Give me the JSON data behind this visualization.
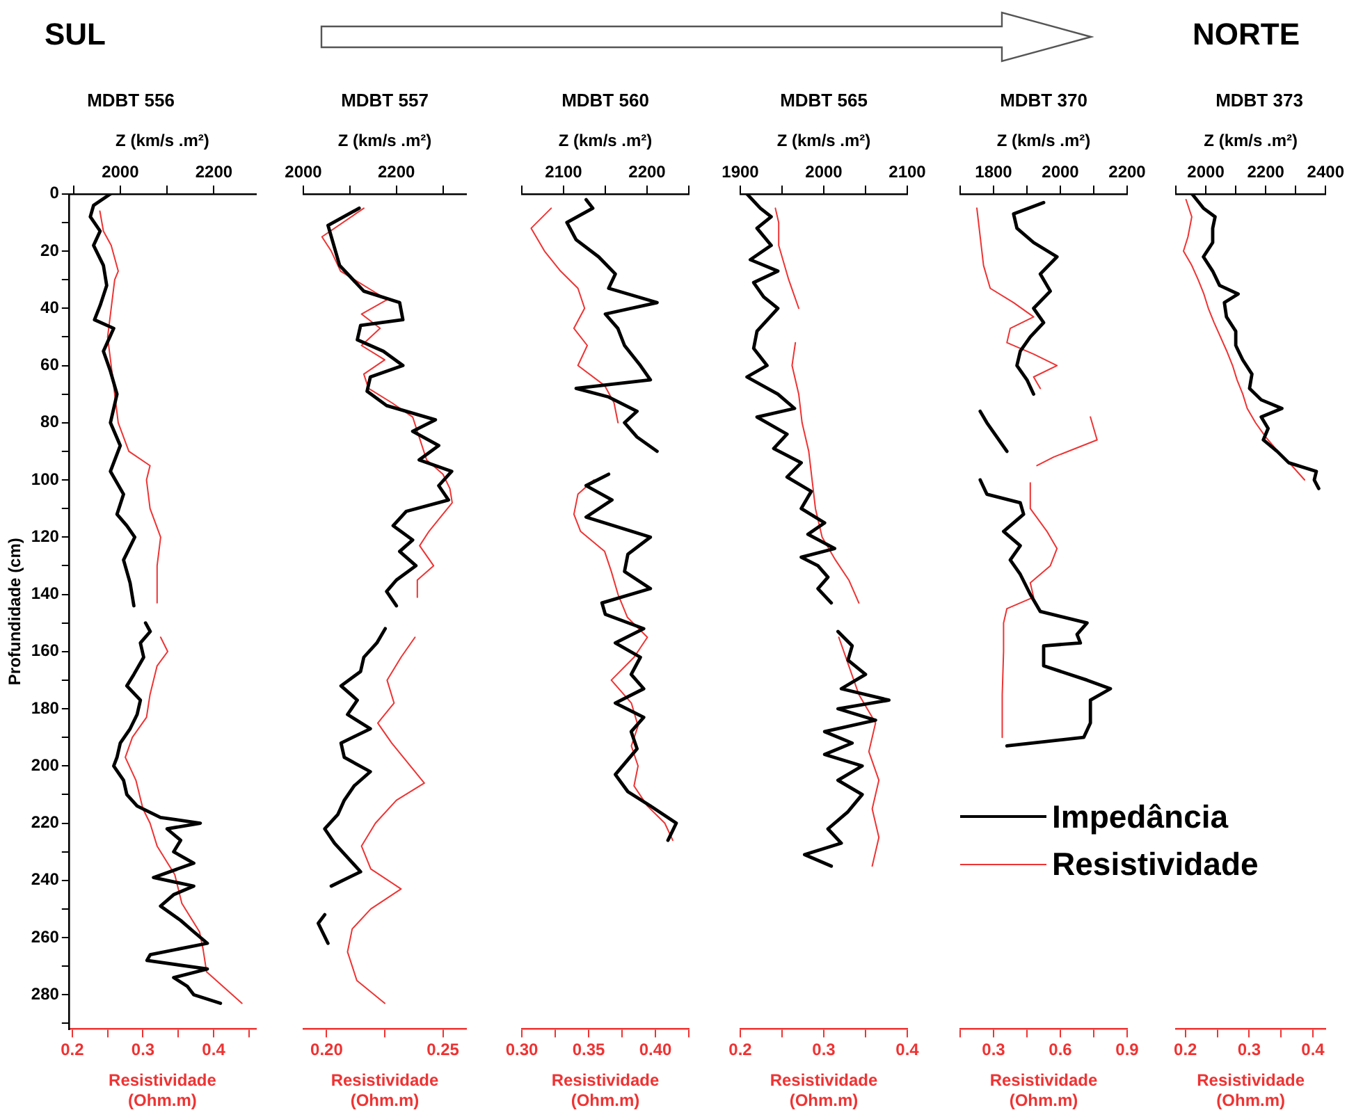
{
  "chart_data": [
    {
      "type": "line",
      "title": "MDBT 556",
      "xlabel": "Resistividade (Ohm.m)",
      "x2label": "Z (km/s .m²)",
      "ylabel": "Profundidade (cm)",
      "annotations": [
        "SUL"
      ],
      "xlim": [
        0.195,
        0.46
      ],
      "xticks": [
        0.2,
        {
          "value": 0.25,
          "label": null
        },
        0.3,
        {
          "value": 0.35,
          "label": null
        },
        0.4,
        {
          "value": 0.45,
          "label": null
        }
      ],
      "x2lim": [
        1890,
        2290
      ],
      "x2ticks": [
        {
          "value": 1900,
          "label": null
        },
        2000,
        {
          "value": 2100,
          "label": null
        },
        2200
      ],
      "ylim": [
        292,
        0
      ],
      "yticks": [
        0,
        {
          "value": 10,
          "label": null
        },
        20,
        {
          "value": 30,
          "label": null
        },
        40,
        {
          "value": 50,
          "label": null
        },
        60,
        {
          "value": 70,
          "label": null
        },
        80,
        {
          "value": 90,
          "label": null
        },
        100,
        {
          "value": 110,
          "label": null
        },
        120,
        {
          "value": 130,
          "label": null
        },
        140,
        {
          "value": 150,
          "label": null
        },
        160,
        {
          "value": 170,
          "label": null
        },
        180,
        {
          "value": 190,
          "label": null
        },
        200,
        {
          "value": 210,
          "label": null
        },
        220,
        {
          "value": 230,
          "label": null
        },
        240,
        {
          "value": 250,
          "label": null
        },
        260,
        {
          "value": 270,
          "label": null
        },
        280,
        {
          "value": 290,
          "label": null
        }
      ],
      "series": [
        {
          "color": "#000000",
          "axis": "x2",
          "x": [
            1979,
            1943,
            1936,
            1957,
            1943,
            1964,
            1971,
            1957,
            1945,
            1986,
            1964,
            1979,
            1993,
            1979,
            2000,
            1979,
            2007,
            1993,
            2014,
            2031,
            2007,
            2021,
            2029,
            null,
            2054,
            2064,
            2043,
            2050,
            2029,
            2014,
            2043,
            2036,
            2021,
            2000,
            1993,
            1986,
            2007,
            2014,
            2036,
            2086,
            2171,
            2100,
            2129,
            2114,
            2157,
            2071,
            2157,
            2114,
            2086,
            2129,
            2157,
            2186,
            2064,
            2057,
            2186,
            2114,
            2143,
            2157,
            2214
          ],
          "values": [
            0,
            4,
            8,
            13,
            18,
            25,
            32,
            39,
            44,
            47,
            55,
            62,
            70,
            80,
            88,
            97,
            105,
            112,
            116,
            120,
            128,
            136,
            144,
            null,
            150,
            153,
            157,
            162,
            168,
            172,
            177,
            182,
            187,
            192,
            197,
            200,
            205,
            210,
            214,
            218,
            220,
            222,
            226,
            230,
            234,
            239,
            242,
            245,
            249,
            254,
            258,
            262,
            266,
            268,
            271,
            274,
            277,
            280,
            283
          ]
        },
        {
          "color": "#ee3333",
          "x": [
            0.239,
            0.244,
            0.255,
            0.265,
            0.26,
            0.255,
            0.25,
            0.255,
            0.26,
            0.265,
            0.28,
            0.31,
            0.305,
            0.31,
            0.325,
            0.32,
            0.32,
            null,
            0.325,
            0.335,
            0.32,
            0.31,
            0.305,
            0.285,
            0.275,
            0.29,
            0.3,
            0.31,
            0.32,
            0.345,
            0.355,
            0.38,
            0.385,
            0.39,
            0.44
          ],
          "values": [
            6,
            13,
            18,
            27,
            30,
            40,
            50,
            60,
            70,
            80,
            90,
            95,
            100,
            110,
            120,
            130,
            143,
            null,
            155,
            160,
            165,
            175,
            183,
            190,
            197,
            205,
            215,
            220,
            228,
            238,
            248,
            258,
            264,
            272,
            283
          ]
        }
      ]
    },
    {
      "type": "line",
      "title": "MDBT 557",
      "xlabel": "Resistividade (Ohm.m)",
      "x2label": "Z (km/s .m²)",
      "tick_labels": "x",
      "xlim": [
        0.19,
        0.26
      ],
      "xticks": [
        {
          "value": 0.2,
          "label": "0.20"
        },
        {
          "value": 0.225,
          "label": null
        },
        {
          "value": 0.25,
          "label": "0.25"
        }
      ],
      "x2lim": [
        2000,
        2350
      ],
      "x2ticks": [
        2000,
        {
          "value": 2100,
          "label": null
        },
        2200,
        {
          "value": 2300,
          "label": null
        }
      ],
      "ylim": [
        292,
        0
      ],
      "series": [
        {
          "color": "#000000",
          "axis": "x2",
          "x": [
            2120,
            2053,
            2078,
            2130,
            2207,
            2214,
            2123,
            2116,
            2172,
            2214,
            2144,
            2137,
            2179,
            2284,
            2235,
            2291,
            2249,
            2319,
            2291,
            2312,
            2221,
            2193,
            2235,
            2207,
            2242,
            2200,
            2179,
            2200,
            null,
            2176,
            2158,
            2130,
            2123,
            2081,
            2116,
            2095,
            2144,
            2081,
            2088,
            2144,
            2109,
            2088,
            2074,
            2046,
            2067,
            2095,
            2123,
            2060,
            null,
            2046,
            2032,
            2053
          ],
          "values": [
            5,
            11,
            25,
            34,
            38,
            44,
            46,
            51,
            55,
            60,
            64,
            69,
            74,
            79,
            83,
            88,
            93,
            97,
            102,
            107,
            111,
            116,
            121,
            125,
            130,
            135,
            139,
            144,
            null,
            152,
            157,
            162,
            167,
            172,
            177,
            182,
            187,
            192,
            197,
            202,
            207,
            212,
            217,
            222,
            227,
            232,
            237,
            242,
            null,
            252,
            255,
            262
          ]
        },
        {
          "color": "#ee3333",
          "x": [
            0.216,
            0.198,
            0.202,
            0.206,
            0.218,
            0.226,
            0.215,
            0.223,
            0.215,
            0.225,
            0.216,
            0.218,
            0.228,
            0.237,
            0.239,
            0.243,
            0.25,
            0.253,
            0.254,
            0.249,
            0.244,
            0.24,
            0.246,
            0.239,
            0.239,
            null,
            0.238,
            0.232,
            0.226,
            0.229,
            0.222,
            0.228,
            0.242,
            0.23,
            0.221,
            0.215,
            0.219,
            0.232,
            0.219,
            0.211,
            0.209,
            0.213,
            0.225
          ],
          "values": [
            5,
            15,
            20,
            27,
            33,
            37,
            42,
            47,
            53,
            58,
            63,
            68,
            73,
            78,
            83,
            93,
            98,
            103,
            108,
            113,
            118,
            123,
            130,
            135,
            141,
            null,
            155,
            162,
            170,
            178,
            185,
            192,
            206,
            212,
            220,
            228,
            236,
            243,
            250,
            257,
            265,
            275,
            283
          ]
        }
      ]
    },
    {
      "type": "line",
      "title": "MDBT 560",
      "xlabel": "Resistividade (Ohm.m)",
      "x2label": "Z (km/s .m²)",
      "tick_labels": "x",
      "xlim": [
        0.3,
        0.425
      ],
      "xticks": [
        {
          "value": 0.3,
          "label": "0.30"
        },
        {
          "value": 0.325,
          "label": null
        },
        {
          "value": 0.35,
          "label": "0.35"
        },
        {
          "value": 0.375,
          "label": null
        },
        {
          "value": 0.4,
          "label": "0.40"
        },
        {
          "value": 0.425,
          "label": null
        }
      ],
      "x2lim": [
        2050,
        2250
      ],
      "x2ticks": [
        {
          "value": 2050,
          "label": null
        },
        2100,
        {
          "value": 2150,
          "label": null
        },
        2200,
        {
          "value": 2250,
          "label": null
        }
      ],
      "ylim": [
        292,
        0
      ],
      "series": [
        {
          "color": "#000000",
          "axis": "x2",
          "x": [
            2127,
            2135,
            2104,
            2115,
            2142,
            2162,
            2154,
            2212,
            2150,
            2165,
            2173,
            2192,
            2204,
            2115,
            2154,
            2188,
            2173,
            2188,
            2212,
            null,
            2154,
            2127,
            2158,
            2127,
            2204,
            2177,
            2173,
            2204,
            2146,
            2150,
            2196,
            2162,
            2192,
            2181,
            2196,
            2162,
            2196,
            2181,
            2188,
            2162,
            2177,
            2204,
            2235,
            2225
          ],
          "values": [
            2,
            5,
            10,
            16,
            22,
            28,
            33,
            38,
            42,
            47,
            53,
            60,
            65,
            68,
            71,
            76,
            80,
            85,
            90,
            null,
            98,
            102,
            107,
            113,
            120,
            126,
            132,
            138,
            143,
            147,
            152,
            157,
            162,
            168,
            173,
            178,
            183,
            188,
            194,
            203,
            209,
            214,
            220,
            226
          ]
        },
        {
          "color": "#ee3333",
          "x": [
            0.322,
            0.307,
            0.317,
            0.329,
            0.342,
            0.347,
            0.339,
            0.349,
            0.342,
            0.362,
            0.369,
            0.372,
            null,
            0.354,
            0.342,
            0.339,
            0.344,
            0.362,
            0.367,
            0.372,
            0.379,
            0.394,
            0.384,
            0.367,
            0.382,
            0.387,
            0.382,
            0.387,
            0.384,
            0.394,
            0.407,
            0.413
          ],
          "values": [
            5,
            12,
            20,
            27,
            33,
            40,
            47,
            53,
            60,
            67,
            73,
            80,
            null,
            100,
            105,
            112,
            118,
            125,
            132,
            140,
            148,
            155,
            162,
            170,
            178,
            186,
            193,
            200,
            207,
            214,
            220,
            226
          ]
        }
      ]
    },
    {
      "type": "line",
      "title": "MDBT 565",
      "xlabel": "Resistividade (Ohm.m)",
      "x2label": "Z (km/s .m²)",
      "tick_labels": "x",
      "xlim": [
        0.2,
        0.4
      ],
      "xticks": [
        0.2,
        {
          "value": 0.25,
          "label": null
        },
        0.3,
        {
          "value": 0.35,
          "label": null
        },
        0.4
      ],
      "x2lim": [
        1900,
        2100
      ],
      "x2ticks": [
        1900,
        {
          "value": 1950,
          "label": null
        },
        2000,
        {
          "value": 2050,
          "label": null
        },
        2100
      ],
      "ylim": [
        292,
        0
      ],
      "series": [
        {
          "color": "#000000",
          "axis": "x2",
          "x": [
            1908,
            1924,
            1937,
            1920,
            1937,
            1912,
            1945,
            1916,
            1928,
            1945,
            1920,
            1916,
            1932,
            1908,
            1945,
            1965,
            1920,
            1956,
            1940,
            1973,
            1956,
            1985,
            1973,
            2001,
            1981,
            2013,
            1973,
            1993,
            2005,
            1993,
            2009,
            null,
            2017,
            2034,
            2029,
            2050,
            2021,
            2078,
            2017,
            2062,
            2001,
            2034,
            2001,
            2046,
            2017,
            2046,
            2029,
            2005,
            2021,
            1977,
            2009
          ],
          "values": [
            0,
            5,
            8,
            12,
            18,
            23,
            27,
            31,
            36,
            40,
            48,
            54,
            60,
            64,
            70,
            75,
            78,
            84,
            89,
            94,
            99,
            104,
            110,
            115,
            119,
            124,
            127,
            130,
            134,
            138,
            143,
            null,
            153,
            158,
            163,
            168,
            173,
            177,
            180,
            184,
            188,
            192,
            196,
            200,
            205,
            210,
            216,
            222,
            227,
            231,
            235
          ]
        },
        {
          "color": "#ee3333",
          "x": [
            0.242,
            0.246,
            0.246,
            0.258,
            0.27,
            null,
            0.266,
            0.262,
            0.27,
            0.274,
            0.282,
            0.286,
            0.29,
            0.298,
            0.314,
            0.33,
            0.342,
            null,
            0.318,
            0.33,
            0.342,
            0.362,
            0.354,
            0.366,
            0.358,
            0.366,
            0.358
          ],
          "values": [
            5,
            10,
            18,
            30,
            40,
            null,
            52,
            60,
            70,
            80,
            90,
            100,
            110,
            120,
            128,
            135,
            143,
            null,
            155,
            165,
            175,
            185,
            195,
            205,
            215,
            225,
            235
          ]
        }
      ]
    },
    {
      "type": "line",
      "title": "MDBT 370",
      "xlabel": "Resistividade (Ohm.m)",
      "x2label": "Z (km/s .m²)",
      "tick_labels": "x",
      "legend": "bottom right",
      "xlim": [
        0.15,
        0.9
      ],
      "xticks": [
        {
          "value": 0.15,
          "label": null
        },
        0.3,
        {
          "value": 0.45,
          "label": null
        },
        0.6,
        {
          "value": 0.75,
          "label": null
        },
        0.9
      ],
      "x2lim": [
        1700,
        2200
      ],
      "x2ticks": [
        {
          "value": 1700,
          "label": null
        },
        1800,
        {
          "value": 1900,
          "label": null
        },
        2000,
        {
          "value": 2100,
          "label": null
        },
        2200
      ],
      "ylim": [
        292,
        0
      ],
      "series": [
        {
          "name": "Impedância",
          "color": "#000000",
          "axis": "x2",
          "x": [
            1950,
            1860,
            1870,
            1920,
            1990,
            1940,
            1970,
            1920,
            1950,
            1910,
            1880,
            1870,
            1900,
            1920,
            null,
            1760,
            1780,
            1810,
            1840,
            null,
            1760,
            1780,
            1880,
            1890,
            1830,
            1880,
            1850,
            1880,
            1910,
            1940,
            2080,
            2050,
            2060,
            1950,
            1950,
            2080,
            2150,
            2090,
            2090,
            2070,
            1840
          ],
          "values": [
            3,
            7,
            12,
            17,
            22,
            28,
            34,
            40,
            45,
            50,
            55,
            60,
            65,
            70,
            null,
            76,
            80,
            85,
            90,
            null,
            100,
            105,
            108,
            112,
            118,
            123,
            128,
            133,
            140,
            146,
            150,
            154,
            157,
            158,
            165,
            170,
            173,
            177,
            185,
            190,
            193
          ]
        },
        {
          "name": "Resistividade",
          "color": "#ee3333",
          "x": [
            0.225,
            0.24,
            0.255,
            0.285,
            0.39,
            0.48,
            0.375,
            0.36,
            0.48,
            0.585,
            0.48,
            0.51,
            null,
            0.735,
            0.765,
            0.57,
            0.495,
            null,
            0.465,
            0.465,
            0.54,
            0.585,
            0.555,
            0.465,
            0.48,
            0.36,
            0.345,
            0.345,
            0.339,
            0.339
          ],
          "values": [
            5,
            15,
            25,
            33,
            38,
            43,
            47,
            52,
            56,
            60,
            64,
            68,
            null,
            78,
            86,
            92,
            95,
            null,
            101,
            110,
            118,
            124,
            130,
            136,
            141,
            145,
            150,
            160,
            175,
            190
          ]
        }
      ]
    },
    {
      "type": "line",
      "title": "MDBT 373",
      "xlabel": "Resistividade (Ohm.m)",
      "x2label": "Z (km/s .m²)",
      "tick_labels": "x",
      "annotations": [
        "NORTE"
      ],
      "xlim": [
        0.185,
        0.42
      ],
      "xticks": [
        0.2,
        {
          "value": 0.25,
          "label": null
        },
        0.3,
        {
          "value": 0.35,
          "label": null
        },
        0.4
      ],
      "x2lim": [
        1900,
        2400
      ],
      "x2ticks": [
        {
          "value": 1900,
          "label": null
        },
        2000,
        {
          "value": 2100,
          "label": null
        },
        2200,
        {
          "value": 2300,
          "label": null
        },
        2400
      ],
      "ylim": [
        292,
        0
      ],
      "series": [
        {
          "color": "#000000",
          "axis": "x2",
          "x": [
            1954,
            1992,
            2031,
            2023,
            2023,
            1992,
            2023,
            2046,
            2108,
            2062,
            2069,
            2100,
            2100,
            2123,
            2154,
            2146,
            2185,
            2254,
            2185,
            2208,
            2192,
            2238,
            2277,
            2369,
            2362,
            2377
          ],
          "values": [
            0,
            5,
            8,
            12,
            17,
            22,
            27,
            32,
            35,
            38,
            43,
            48,
            53,
            58,
            63,
            68,
            72,
            75,
            78,
            82,
            86,
            90,
            94,
            97,
            100,
            103
          ]
        },
        {
          "color": "#ee3333",
          "x": [
            0.201,
            0.21,
            0.204,
            0.197,
            0.21,
            0.22,
            0.229,
            0.236,
            0.245,
            0.255,
            0.265,
            0.274,
            0.281,
            0.29,
            0.297,
            0.31,
            0.326,
            0.345,
            0.367,
            0.387
          ],
          "values": [
            2,
            8,
            15,
            20,
            25,
            30,
            35,
            40,
            45,
            50,
            55,
            60,
            65,
            70,
            75,
            80,
            85,
            90,
            95,
            100
          ]
        }
      ]
    }
  ]
}
